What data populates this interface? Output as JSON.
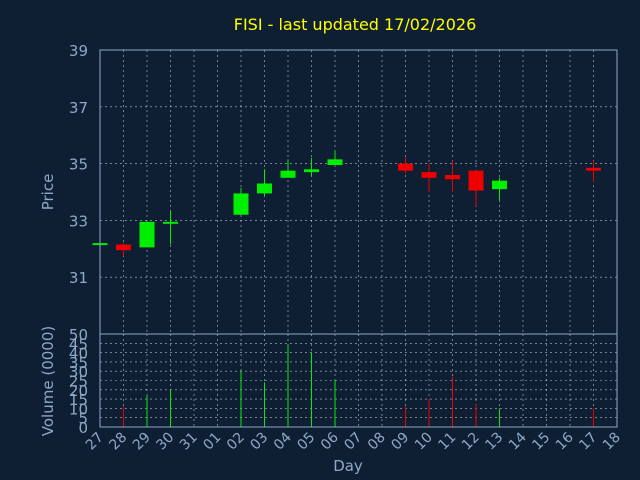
{
  "chart_data": [
    {
      "type": "candlestick",
      "title": "FISI - last updated 17/02/2026",
      "ylabel": "Price",
      "ylim": [
        29,
        39
      ],
      "yticks": [
        "39",
        "37",
        "35",
        "33",
        "31"
      ],
      "grid": true,
      "colors": {
        "up": "#00ee00",
        "down": "#ee0000",
        "background": "#0f1f33",
        "grid": "#ffffff",
        "text": "#8ea8c8",
        "title": "#ffff00"
      },
      "categories": [
        "27",
        "28",
        "29",
        "30",
        "31",
        "01",
        "02",
        "03",
        "04",
        "05",
        "06",
        "07",
        "08",
        "09",
        "10",
        "11",
        "12",
        "13",
        "14",
        "15",
        "16",
        "17",
        "18"
      ],
      "candles": [
        {
          "day": "27",
          "open": 32.15,
          "close": 32.2,
          "high": 32.2,
          "low": 32.15,
          "dir": "up"
        },
        {
          "day": "28",
          "open": 32.15,
          "close": 31.95,
          "high": 32.2,
          "low": 31.75,
          "dir": "down"
        },
        {
          "day": "29",
          "open": 32.05,
          "close": 32.95,
          "high": 32.95,
          "low": 32.05,
          "dir": "up"
        },
        {
          "day": "30",
          "open": 32.9,
          "close": 32.95,
          "high": 33.35,
          "low": 32.15,
          "dir": "up"
        },
        {
          "day": "02",
          "open": 33.2,
          "close": 33.95,
          "high": 34.15,
          "low": 33.2,
          "dir": "up"
        },
        {
          "day": "03",
          "open": 33.95,
          "close": 34.3,
          "high": 34.8,
          "low": 33.85,
          "dir": "up"
        },
        {
          "day": "04",
          "open": 34.5,
          "close": 34.75,
          "high": 35.15,
          "low": 34.5,
          "dir": "up"
        },
        {
          "day": "05",
          "open": 34.7,
          "close": 34.8,
          "high": 35.2,
          "low": 34.55,
          "dir": "up"
        },
        {
          "day": "06",
          "open": 34.95,
          "close": 35.15,
          "high": 35.45,
          "low": 34.95,
          "dir": "up"
        },
        {
          "day": "09",
          "open": 35.0,
          "close": 34.75,
          "high": 35.2,
          "low": 34.65,
          "dir": "down"
        },
        {
          "day": "10",
          "open": 34.7,
          "close": 34.5,
          "high": 35.0,
          "low": 34.0,
          "dir": "down"
        },
        {
          "day": "11",
          "open": 34.6,
          "close": 34.45,
          "high": 35.1,
          "low": 34.0,
          "dir": "down"
        },
        {
          "day": "12",
          "open": 34.75,
          "close": 34.05,
          "high": 34.75,
          "low": 33.5,
          "dir": "down"
        },
        {
          "day": "13",
          "open": 34.1,
          "close": 34.4,
          "high": 34.5,
          "low": 33.7,
          "dir": "up"
        },
        {
          "day": "17",
          "open": 34.85,
          "close": 34.75,
          "high": 35.1,
          "low": 34.35,
          "dir": "down"
        }
      ]
    },
    {
      "type": "bar",
      "ylabel": "Volume (0000)",
      "xlabel": "Day",
      "ylim": [
        0,
        50
      ],
      "yticks": [
        "50",
        "45",
        "40",
        "35",
        "30",
        "25",
        "20",
        "15",
        "10",
        "5",
        "0"
      ],
      "grid": true,
      "volumes": [
        {
          "day": "28",
          "value": 11,
          "dir": "down"
        },
        {
          "day": "29",
          "value": 17,
          "dir": "up"
        },
        {
          "day": "30",
          "value": 20,
          "dir": "up"
        },
        {
          "day": "02",
          "value": 30,
          "dir": "up"
        },
        {
          "day": "03",
          "value": 24,
          "dir": "up"
        },
        {
          "day": "04",
          "value": 44,
          "dir": "up"
        },
        {
          "day": "05",
          "value": 40,
          "dir": "up"
        },
        {
          "day": "06",
          "value": 25,
          "dir": "up"
        },
        {
          "day": "09",
          "value": 11,
          "dir": "down"
        },
        {
          "day": "10",
          "value": 15,
          "dir": "down"
        },
        {
          "day": "11",
          "value": 27,
          "dir": "down"
        },
        {
          "day": "12",
          "value": 12,
          "dir": "down"
        },
        {
          "day": "13",
          "value": 10,
          "dir": "up"
        },
        {
          "day": "17",
          "value": 10,
          "dir": "down"
        }
      ]
    }
  ]
}
